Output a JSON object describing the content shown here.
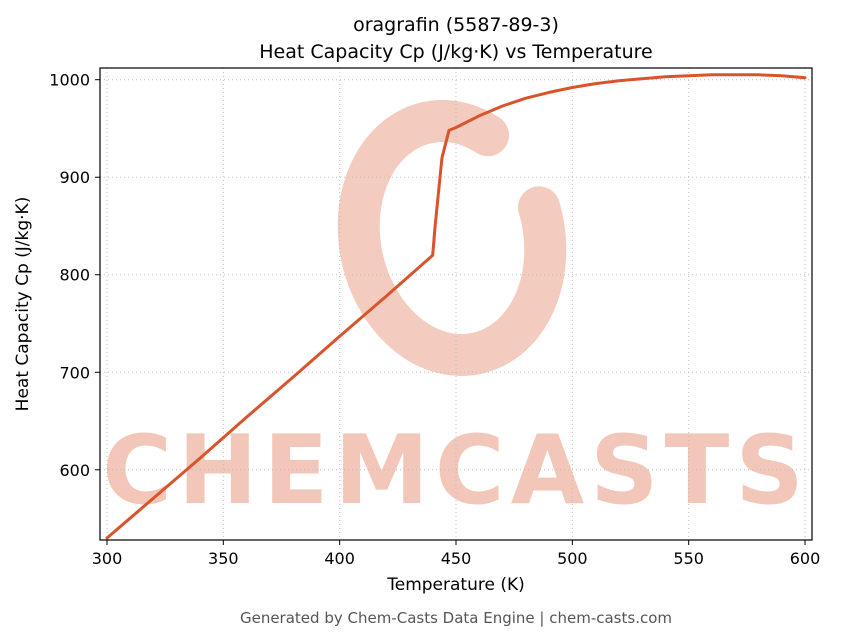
{
  "titles": {
    "line1": "oragrafin (5587-89-3)",
    "line2": "Heat Capacity Cp (J/kg·K) vs Temperature"
  },
  "watermark": {
    "text": "CHEMCASTS",
    "color": "rgba(217,84,43,0.33)"
  },
  "footer": {
    "text": "Generated by Chem-Casts Data Engine | chem-casts.com"
  },
  "chart_data": {
    "type": "line",
    "title": "oragrafin (5587-89-3) Heat Capacity Cp (J/kg·K) vs Temperature",
    "xlabel": "Temperature (K)",
    "ylabel": "Heat Capacity Cp (J/kg·K)",
    "xlim": [
      297,
      603
    ],
    "ylim": [
      528,
      1012
    ],
    "x_ticks": [
      300,
      350,
      400,
      450,
      500,
      550,
      600
    ],
    "y_ticks": [
      600,
      700,
      800,
      900,
      1000
    ],
    "grid": true,
    "legend": "none",
    "line_color": "#d9542b",
    "series": [
      {
        "name": "Heat Capacity Cp",
        "x": [
          300,
          320,
          340,
          360,
          380,
          400,
          420,
          440,
          441,
          444,
          447,
          450,
          460,
          470,
          480,
          490,
          500,
          510,
          520,
          530,
          540,
          550,
          560,
          570,
          580,
          590,
          600
        ],
        "y": [
          530,
          571,
          612,
          654,
          695,
          737,
          778,
          820,
          850,
          920,
          948,
          951,
          963,
          973,
          981,
          987,
          992,
          996,
          999,
          1001,
          1003,
          1004,
          1005,
          1005,
          1005,
          1004,
          1002
        ]
      }
    ]
  }
}
